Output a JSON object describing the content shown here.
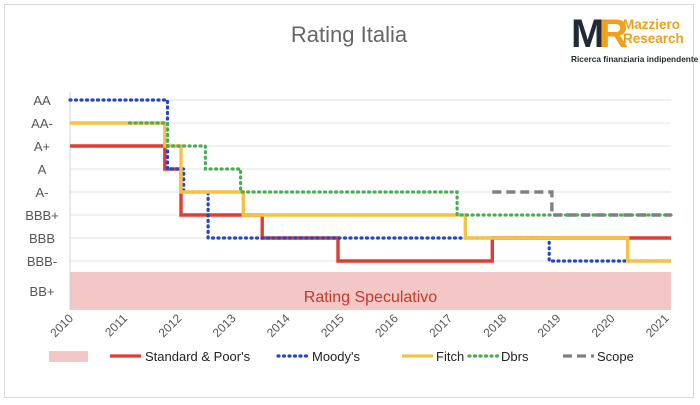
{
  "logo": {
    "monogram_m": "M",
    "monogram_r": "R",
    "name_line1": "Mazziero",
    "name_line2": "Research",
    "tagline": "Ricerca finanziaria indipendente"
  },
  "colors": {
    "sp": "#e03c31",
    "moodys": "#2346c9",
    "fitch": "#f6c244",
    "dbrs": "#4aad52",
    "scope": "#808080",
    "speculative_band": "#f4c7c7",
    "grid": "#e3e3e3",
    "text": "#555555"
  },
  "chart_data": {
    "type": "line",
    "step": true,
    "title": "Rating Italia",
    "xlabel": "",
    "ylabel": "",
    "xlim": [
      2010,
      2021.1
    ],
    "x_ticks": [
      "2010",
      "2011",
      "2012",
      "2013",
      "2014",
      "2015",
      "2016",
      "2017",
      "2018",
      "2019",
      "2020",
      "2021"
    ],
    "y_categories": [
      "BB+",
      "BBB-",
      "BBB",
      "BBB+",
      "A-",
      "A",
      "A+",
      "AA-",
      "AA"
    ],
    "grid": "horizontal",
    "legend_position": "bottom",
    "band": {
      "label": "Rating Speculativo",
      "rating": "BB+"
    },
    "series": [
      {
        "name": "Standard & Poor's",
        "key": "sp",
        "style": "solid",
        "x": [
          2010.0,
          2011.75,
          2012.05,
          2013.55,
          2014.95,
          2017.8,
          2021.1
        ],
        "y": [
          "A+",
          "A",
          "BBB+",
          "BBB",
          "BBB-",
          "BBB",
          "BBB"
        ]
      },
      {
        "name": "Moody's",
        "key": "moodys",
        "style": "dotted",
        "x": [
          2010.0,
          2011.8,
          2012.1,
          2012.55,
          2018.85,
          2021.1
        ],
        "y": [
          "AA",
          "A",
          "A-",
          "BBB",
          "BBB-",
          "BBB-"
        ]
      },
      {
        "name": "Fitch",
        "key": "fitch",
        "style": "solid",
        "x": [
          2010.0,
          2011.75,
          2012.05,
          2013.2,
          2017.3,
          2020.3,
          2021.1
        ],
        "y": [
          "AA-",
          "A+",
          "A-",
          "BBB+",
          "BBB",
          "BBB-",
          "BBB-"
        ]
      },
      {
        "name": "Dbrs",
        "key": "dbrs",
        "style": "dotted",
        "x": [
          2011.1,
          2011.8,
          2012.5,
          2013.15,
          2017.15,
          2021.1
        ],
        "y": [
          "AA-",
          "A+",
          "A",
          "A-",
          "BBB+",
          "BBB+"
        ]
      },
      {
        "name": "Scope",
        "key": "scope",
        "style": "dashed",
        "x": [
          2017.8,
          2018.9,
          2021.1
        ],
        "y": [
          "A-",
          "BBB+",
          "BBB+"
        ]
      }
    ]
  }
}
